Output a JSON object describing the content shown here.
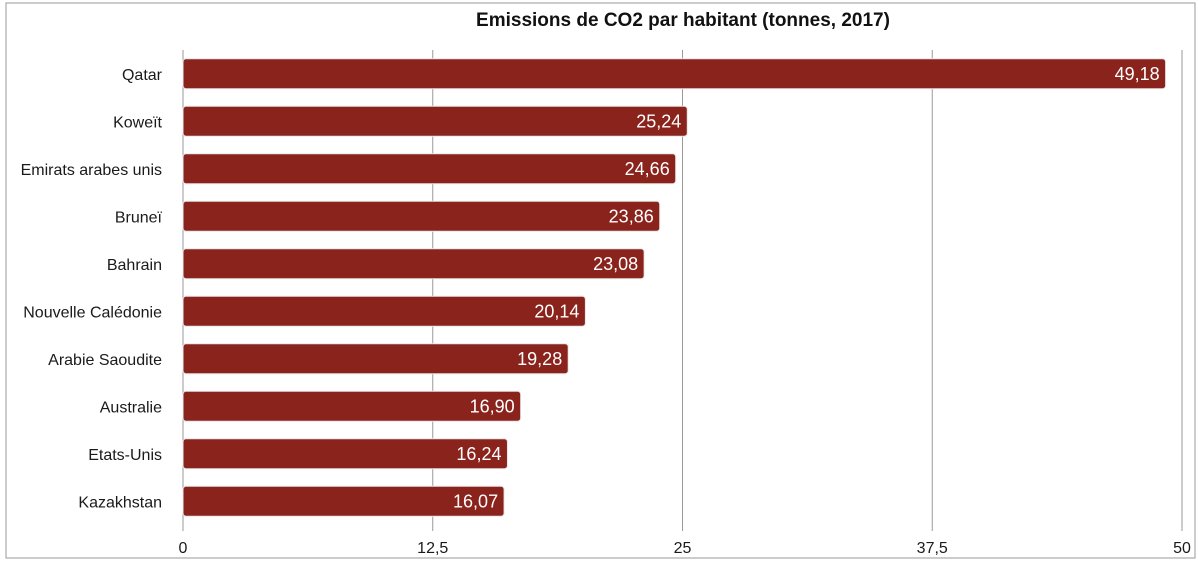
{
  "chart_data": {
    "type": "bar",
    "orientation": "horizontal",
    "title": "Emissions de CO2 par habitant (tonnes, 2017)",
    "categories": [
      "Qatar",
      "Koweït",
      "Emirats arabes unis",
      "Bruneï",
      "Bahrain",
      "Nouvelle Calédonie",
      "Arabie Saoudite",
      "Australie",
      "Etats-Unis",
      "Kazakhstan"
    ],
    "values": [
      49.18,
      25.24,
      24.66,
      23.86,
      23.08,
      20.14,
      19.28,
      16.9,
      16.24,
      16.07
    ],
    "value_labels": [
      "49,18",
      "25,24",
      "24,66",
      "23,86",
      "23,08",
      "20,14",
      "19,28",
      "16,90",
      "16,24",
      "16,07"
    ],
    "xlim": [
      0,
      50
    ],
    "x_ticks": [
      0,
      12.5,
      25,
      37.5,
      50
    ],
    "x_tick_labels": [
      "0",
      "12,5",
      "25",
      "37,5",
      "50"
    ],
    "grid": true,
    "legend": "none",
    "colors": {
      "bar": "#8b231d",
      "bar_stroke": "#e8e8e8",
      "grid": "#9a9a9a",
      "frame": "#9a9a9a"
    }
  }
}
